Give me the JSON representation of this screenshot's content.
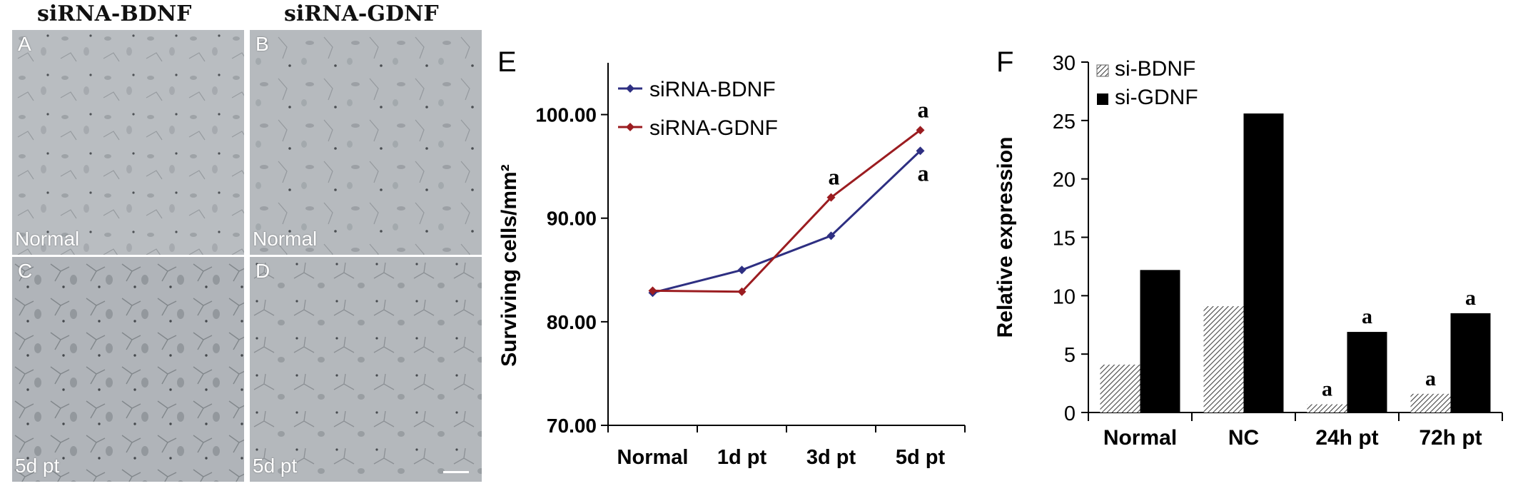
{
  "figure": {
    "column_titles": [
      "siRNA-BDNF",
      "siRNA-GDNF"
    ],
    "panels": [
      {
        "letter": "A",
        "condition": "Normal"
      },
      {
        "letter": "B",
        "condition": "Normal"
      },
      {
        "letter": "C",
        "condition": "5d pt"
      },
      {
        "letter": "D",
        "condition": "5d pt"
      }
    ]
  },
  "chart_data": [
    {
      "panel": "E",
      "type": "line",
      "ylabel": "Surviving cells/mm²",
      "ylim": [
        70,
        105
      ],
      "yticks": [
        "70.00",
        "80.00",
        "90.00",
        "100.00"
      ],
      "categories": [
        "Normal",
        "1d pt",
        "3d pt",
        "5d pt"
      ],
      "series": [
        {
          "name": "siRNA-BDNF",
          "color": "#2e2f82",
          "values": [
            82.8,
            85.0,
            88.3,
            96.5
          ]
        },
        {
          "name": "siRNA-GDNF",
          "color": "#9b1c20",
          "values": [
            83.0,
            82.9,
            92.0,
            98.5
          ]
        }
      ],
      "annotations": [
        {
          "category": "3d pt",
          "text": "a",
          "series": "siRNA-GDNF"
        },
        {
          "category": "5d pt",
          "text": "a",
          "series": "siRNA-GDNF"
        },
        {
          "category": "5d pt",
          "text": "a",
          "series": "siRNA-BDNF"
        }
      ],
      "legend": "top-left"
    },
    {
      "panel": "F",
      "type": "bar",
      "ylabel": "Relative expression",
      "ylim": [
        0,
        30
      ],
      "yticks": [
        "0",
        "5",
        "10",
        "15",
        "20",
        "25",
        "30"
      ],
      "categories": [
        "Normal",
        "NC",
        "24h pt",
        "72h pt"
      ],
      "series": [
        {
          "name": "si-BDNF",
          "pattern": "hatched",
          "values": [
            4.1,
            9.1,
            0.7,
            1.6
          ]
        },
        {
          "name": "si-GDNF",
          "color": "#000000",
          "values": [
            12.2,
            25.6,
            6.9,
            8.5
          ]
        }
      ],
      "annotations": [
        {
          "category": "24h pt",
          "series": "si-BDNF",
          "text": "a"
        },
        {
          "category": "24h pt",
          "series": "si-GDNF",
          "text": "a"
        },
        {
          "category": "72h pt",
          "series": "si-BDNF",
          "text": "a"
        },
        {
          "category": "72h pt",
          "series": "si-GDNF",
          "text": "a"
        }
      ],
      "legend": "top-left"
    }
  ]
}
